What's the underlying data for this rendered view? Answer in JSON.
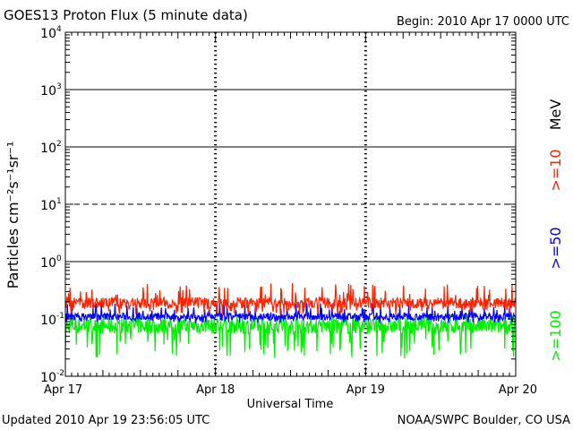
{
  "header": {
    "title": "GOES13 Proton Flux (5 minute data)",
    "begin": "Begin: 2010 Apr 17 0000 UTC"
  },
  "footer": {
    "updated": "Updated 2010 Apr 19 23:56:05 UTC",
    "credit": "NOAA/SWPC Boulder, CO USA"
  },
  "chart_data": {
    "type": "line",
    "title": "GOES13 Proton Flux (5 minute data)",
    "xlabel": "Universal Time",
    "ylabel": "Particles cm⁻²s⁻¹sr⁻¹",
    "yscale": "log",
    "ylim": [
      0.01,
      10000
    ],
    "xlim": [
      "2010-04-17 00:00",
      "2010-04-20 00:00"
    ],
    "x_ticks": [
      "Apr 17",
      "Apr 18",
      "Apr 19",
      "Apr 20"
    ],
    "y_ticks": [
      {
        "base": "10",
        "exp": "-2"
      },
      {
        "base": "10",
        "exp": "-1"
      },
      {
        "base": "10",
        "exp": "0"
      },
      {
        "base": "10",
        "exp": "1"
      },
      {
        "base": "10",
        "exp": "2"
      },
      {
        "base": "10",
        "exp": "3"
      },
      {
        "base": "10",
        "exp": "4"
      }
    ],
    "reference_lines": [
      {
        "y": 1,
        "style": "solid"
      },
      {
        "y": 10,
        "style": "dashed"
      },
      {
        "y": 100,
        "style": "solid"
      },
      {
        "y": 1000,
        "style": "solid"
      }
    ],
    "legend_unit": "MeV",
    "legend_position": "right",
    "series": [
      {
        "name": ">=10",
        "color": "#ff2200",
        "typical": 0.19,
        "range": [
          0.12,
          0.42
        ]
      },
      {
        "name": ">=50",
        "color": "#0000ff",
        "typical": 0.11,
        "range": [
          0.085,
          0.19
        ]
      },
      {
        "name": ">=100",
        "color": "#00ee00",
        "typical": 0.075,
        "range": [
          0.02,
          0.12
        ]
      }
    ],
    "grid": false
  }
}
